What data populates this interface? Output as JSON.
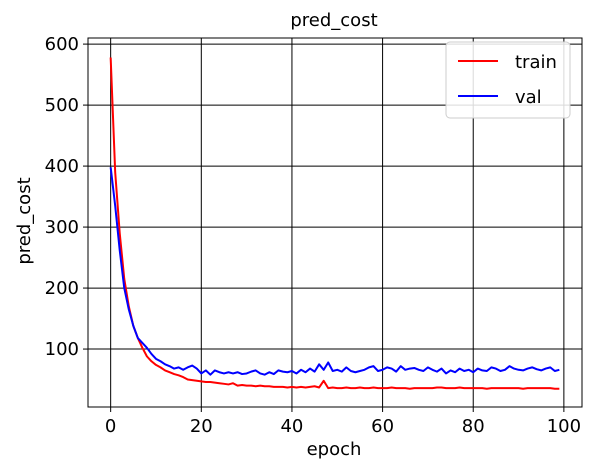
{
  "chart_data": {
    "type": "line",
    "title": "pred_cost",
    "xlabel": "epoch",
    "ylabel": "pred_cost",
    "xlim": [
      -5,
      104
    ],
    "ylim": [
      5,
      610
    ],
    "xticks": [
      0,
      20,
      40,
      60,
      80,
      100
    ],
    "yticks": [
      100,
      200,
      300,
      400,
      500,
      600
    ],
    "grid": true,
    "legend": "top-right",
    "series": [
      {
        "name": "train",
        "color": "#ff0000",
        "x": [
          0,
          1,
          2,
          3,
          4,
          5,
          6,
          7,
          8,
          9,
          10,
          11,
          12,
          13,
          14,
          15,
          16,
          17,
          18,
          19,
          20,
          21,
          22,
          23,
          24,
          25,
          26,
          27,
          28,
          29,
          30,
          31,
          32,
          33,
          34,
          35,
          36,
          37,
          38,
          39,
          40,
          41,
          42,
          43,
          44,
          45,
          46,
          47,
          48,
          49,
          50,
          51,
          52,
          53,
          54,
          55,
          56,
          57,
          58,
          59,
          60,
          61,
          62,
          63,
          64,
          65,
          66,
          67,
          68,
          69,
          70,
          71,
          72,
          73,
          74,
          75,
          76,
          77,
          78,
          79,
          80,
          81,
          82,
          83,
          84,
          85,
          86,
          87,
          88,
          89,
          90,
          91,
          92,
          93,
          94,
          95,
          96,
          97,
          98,
          99
        ],
        "y": [
          578,
          390,
          290,
          215,
          170,
          138,
          118,
          102,
          88,
          80,
          74,
          70,
          65,
          62,
          59,
          57,
          54,
          50,
          49,
          48,
          47,
          46,
          46,
          45,
          44,
          43,
          42,
          44,
          40,
          41,
          40,
          40,
          39,
          40,
          39,
          39,
          38,
          38,
          38,
          37,
          38,
          37,
          38,
          37,
          38,
          39,
          37,
          48,
          36,
          37,
          36,
          36,
          37,
          36,
          36,
          37,
          36,
          36,
          37,
          36,
          36,
          36,
          37,
          36,
          36,
          36,
          35,
          36,
          36,
          36,
          36,
          36,
          37,
          37,
          36,
          36,
          36,
          37,
          36,
          36,
          36,
          36,
          36,
          35,
          36,
          36,
          36,
          36,
          36,
          36,
          36,
          35,
          36,
          36,
          36,
          36,
          36,
          36,
          35,
          35
        ]
      },
      {
        "name": "val",
        "color": "#0000ff",
        "x": [
          0,
          1,
          2,
          3,
          4,
          5,
          6,
          7,
          8,
          9,
          10,
          11,
          12,
          13,
          14,
          15,
          16,
          17,
          18,
          19,
          20,
          21,
          22,
          23,
          24,
          25,
          26,
          27,
          28,
          29,
          30,
          31,
          32,
          33,
          34,
          35,
          36,
          37,
          38,
          39,
          40,
          41,
          42,
          43,
          44,
          45,
          46,
          47,
          48,
          49,
          50,
          51,
          52,
          53,
          54,
          55,
          56,
          57,
          58,
          59,
          60,
          61,
          62,
          63,
          64,
          65,
          66,
          67,
          68,
          69,
          70,
          71,
          72,
          73,
          74,
          75,
          76,
          77,
          78,
          79,
          80,
          81,
          82,
          83,
          84,
          85,
          86,
          87,
          88,
          89,
          90,
          91,
          92,
          93,
          94,
          95,
          96,
          97,
          98,
          99
        ],
        "y": [
          398,
          335,
          262,
          200,
          165,
          138,
          118,
          110,
          102,
          92,
          84,
          80,
          75,
          72,
          68,
          70,
          66,
          70,
          73,
          68,
          60,
          65,
          58,
          65,
          62,
          60,
          62,
          60,
          62,
          59,
          60,
          63,
          65,
          60,
          58,
          62,
          59,
          65,
          63,
          62,
          64,
          60,
          66,
          62,
          68,
          63,
          75,
          66,
          78,
          64,
          66,
          63,
          70,
          64,
          62,
          64,
          66,
          70,
          72,
          64,
          66,
          70,
          68,
          63,
          72,
          66,
          68,
          69,
          66,
          64,
          70,
          66,
          63,
          68,
          60,
          65,
          62,
          68,
          64,
          66,
          62,
          68,
          65,
          64,
          70,
          68,
          64,
          66,
          72,
          68,
          66,
          65,
          68,
          70,
          67,
          65,
          68,
          70,
          64,
          66
        ]
      }
    ]
  }
}
